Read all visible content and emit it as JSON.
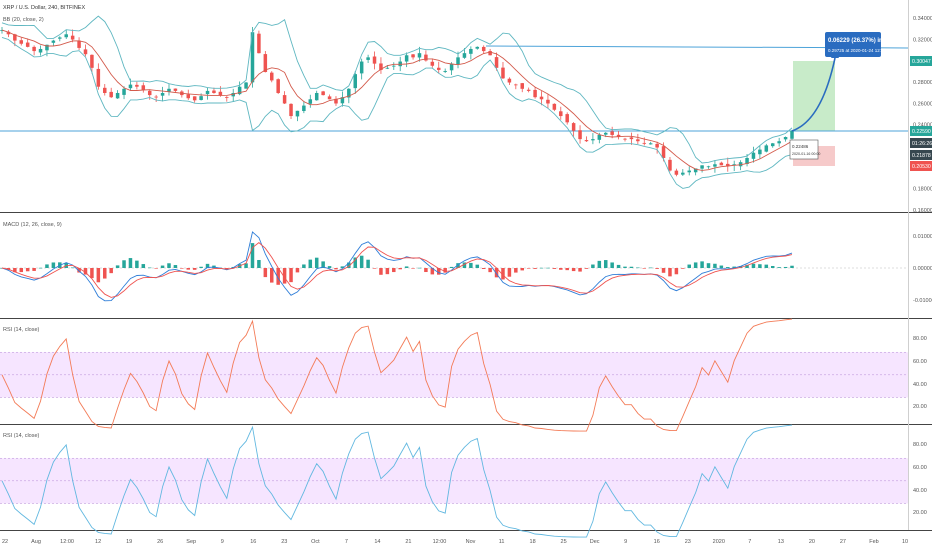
{
  "header": {
    "symbol_line": "XRP / U.S. Dollar, 240, BITFINEX",
    "bb_label": "BB (20, close, 2)"
  },
  "colors": {
    "candle_up": "#26a69a",
    "candle_down": "#ef5350",
    "bb_band": "#5fb7c1",
    "bb_mid": "#d35a4b",
    "resistance_line": "#4da3d9",
    "macd_line": "#2f7ed8",
    "signal_line": "#ef5350",
    "rsi1_line": "#f37b57",
    "rsi2_line": "#62b8e0",
    "rsi_band_fill": "#f3dcff",
    "target_zone": "#c8ebc9",
    "stop_zone": "#f6caca",
    "callout_bg": "#2a6cc0",
    "price_tag_green": "#26a69a",
    "price_tag_red": "#ef5350",
    "price_tag_dark": "#37474f"
  },
  "price_axis": {
    "ticks": [
      "0.34000",
      "0.32000",
      "0.30000",
      "0.28000",
      "0.26000",
      "0.24000",
      "0.22000",
      "0.20000",
      "0.18000",
      "0.16000"
    ],
    "tags": [
      {
        "label": "0.30047",
        "kind": "green"
      },
      {
        "label": "0.22590",
        "kind": "green"
      },
      {
        "label": "01:26:26",
        "kind": "dark"
      },
      {
        "label": "0.21878",
        "kind": "dark"
      },
      {
        "label": "0.20530",
        "kind": "red"
      }
    ]
  },
  "annotations": {
    "callout_line1": "0.06229 (26.37%) in 8d 4h",
    "callout_line2": "0.29725 at 2020-01-24 12:00",
    "entry_label_line1": "0.22486",
    "entry_label_line2": "2020-01-16 00:00"
  },
  "time_axis": {
    "labels": [
      "22",
      "Aug",
      "12:00",
      "12",
      "19",
      "26",
      "Sep",
      "9",
      "16",
      "23",
      "Oct",
      "7",
      "14",
      "21",
      "12:00",
      "Nov",
      "11",
      "18",
      "25",
      "Dec",
      "9",
      "16",
      "23",
      "2020",
      "7",
      "13",
      "20",
      "27",
      "Feb",
      "10"
    ]
  },
  "macd_pane": {
    "label": "MACD (12, 26, close, 9)",
    "ticks": [
      "0.01000",
      "0.00000",
      "-0.01000"
    ]
  },
  "rsi_pane_1": {
    "label": "RSI (14, close)",
    "ticks": [
      "80.00",
      "60.00",
      "40.00",
      "20.00"
    ]
  },
  "rsi_pane_2": {
    "label": "RSI (14, close)",
    "ticks": [
      "80.00",
      "60.00",
      "40.00",
      "20.00"
    ]
  },
  "chart_data": {
    "type": "line",
    "series": [
      {
        "name": "XRP / U.S. Dollar",
        "values": [
          0.322,
          0.318,
          0.312,
          0.309,
          0.306,
          0.302,
          0.304,
          0.308,
          0.312,
          0.315,
          0.318,
          0.313,
          0.305,
          0.299,
          0.286,
          0.268,
          0.262,
          0.258,
          0.262,
          0.266,
          0.27,
          0.268,
          0.265,
          0.26,
          0.258,
          0.262,
          0.266,
          0.264,
          0.26,
          0.257,
          0.255,
          0.259,
          0.264,
          0.262,
          0.26,
          0.258,
          0.262,
          0.268,
          0.272,
          0.32,
          0.3,
          0.282,
          0.274,
          0.262,
          0.252,
          0.24,
          0.245,
          0.25,
          0.256,
          0.262,
          0.26,
          0.256,
          0.252,
          0.258,
          0.266,
          0.28,
          0.292,
          0.296,
          0.29,
          0.284,
          0.286,
          0.288,
          0.292,
          0.298,
          0.296,
          0.3,
          0.293,
          0.288,
          0.284,
          0.283,
          0.29,
          0.296,
          0.3,
          0.304,
          0.306,
          0.302,
          0.298,
          0.286,
          0.276,
          0.272,
          0.27,
          0.266,
          0.264,
          0.258,
          0.256,
          0.252,
          0.246,
          0.24,
          0.234,
          0.226,
          0.218,
          0.216,
          0.218,
          0.222,
          0.224,
          0.222,
          0.22,
          0.218,
          0.218,
          0.216,
          0.214,
          0.214,
          0.21,
          0.2,
          0.188,
          0.184,
          0.186,
          0.188,
          0.19,
          0.193,
          0.192,
          0.194,
          0.193,
          0.192,
          0.194,
          0.196,
          0.2,
          0.205,
          0.208,
          0.212,
          0.214,
          0.216,
          0.22,
          0.226
        ]
      }
    ],
    "ylim": [
      0.158,
      0.345
    ],
    "resistance_level": 0.3195,
    "support_level": 0.2259,
    "target_price": 0.29725,
    "entry_price": 0.22486,
    "stop_price": 0.2053,
    "change": "0.06229 (26.37%)",
    "duration": "8d 4h"
  }
}
